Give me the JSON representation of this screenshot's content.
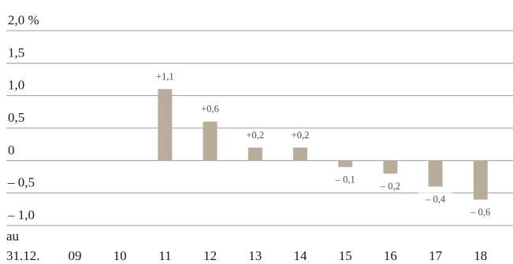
{
  "chart_data": {
    "type": "bar",
    "x_prefix": [
      "au",
      "31.12."
    ],
    "categories": [
      "09",
      "10",
      "11",
      "12",
      "13",
      "14",
      "15",
      "16",
      "17",
      "18"
    ],
    "values": [
      null,
      null,
      1.1,
      0.6,
      0.2,
      0.2,
      -0.1,
      -0.2,
      -0.4,
      -0.6
    ],
    "data_labels": [
      "",
      "",
      "+1,1",
      "+0,6",
      "+0,2",
      "+0,2",
      "– 0,1",
      "– 0,2",
      "– 0,4",
      "– 0,6"
    ],
    "y_ticks": [
      {
        "value": 2.0,
        "label": "2,0 %"
      },
      {
        "value": 1.5,
        "label": "1,5"
      },
      {
        "value": 1.0,
        "label": "1,0"
      },
      {
        "value": 0.5,
        "label": "0,5"
      },
      {
        "value": 0.0,
        "label": "0"
      },
      {
        "value": -0.5,
        "label": "– 0,5"
      },
      {
        "value": -1.0,
        "label": "– 1,0"
      }
    ],
    "ylim": [
      -1.0,
      2.0
    ],
    "grid": true,
    "legend": "none",
    "colors": {
      "bar": "#b8ad9b",
      "grid": "#9c9c9c",
      "text": "#1a1a1a",
      "label": "#4a4a4a"
    }
  }
}
